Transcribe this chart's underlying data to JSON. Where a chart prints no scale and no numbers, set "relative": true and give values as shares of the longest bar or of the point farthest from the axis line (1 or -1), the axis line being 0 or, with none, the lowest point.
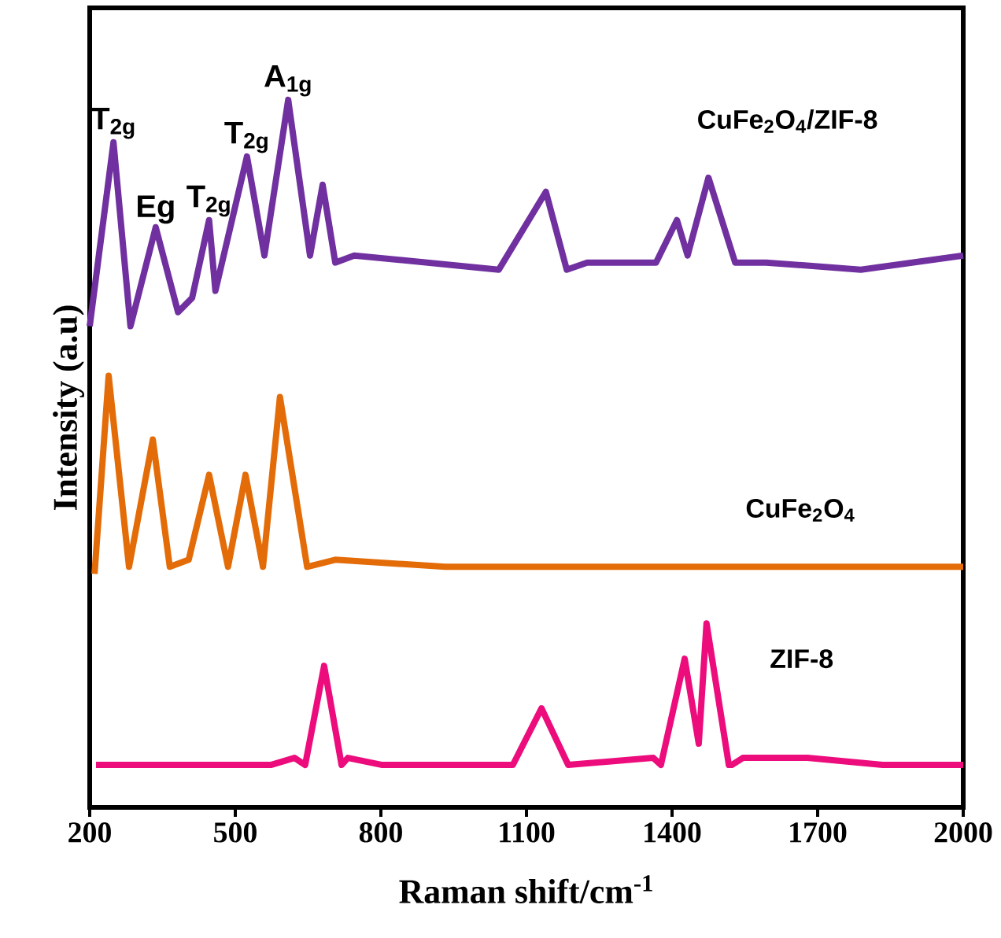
{
  "chart_data": {
    "type": "line",
    "relative": true,
    "xlabel": "Raman shift/cm$^{-1}$",
    "ylabel": "Intensity (a.u)",
    "xlim": [
      200,
      2000
    ],
    "xticks": [
      200,
      500,
      800,
      1100,
      1400,
      1700,
      2000
    ],
    "marker": "none",
    "line_style": "solid",
    "annotations": [
      {
        "text": "T$_{2g}$",
        "x": 249,
        "y": 0.94
      },
      {
        "text": "Eg",
        "x": 336,
        "y": 0.82
      },
      {
        "text": "T$_{2g}$",
        "x": 446,
        "y": 0.83
      },
      {
        "text": "T$_{2g}$",
        "x": 524,
        "y": 0.92
      },
      {
        "text": "A$_{1g}$",
        "x": 609,
        "y": 1.0
      }
    ],
    "series": [
      {
        "name": "CuFe$_{2}$O$_{4}$/ZIF-8",
        "color": "#7030a0",
        "x": [
          200,
          249,
          284,
          336,
          382,
          411,
          446,
          459,
          524,
          560,
          609,
          654,
          680,
          706,
          745,
          1043,
          1140,
          1183,
          1225,
          1367,
          1410,
          1432,
          1475,
          1530,
          1594,
          1789,
          2000
        ],
        "values": [
          0.68,
          0.94,
          0.68,
          0.82,
          0.7,
          0.72,
          0.83,
          0.73,
          0.92,
          0.78,
          1.0,
          0.78,
          0.88,
          0.77,
          0.78,
          0.76,
          0.87,
          0.76,
          0.77,
          0.77,
          0.83,
          0.78,
          0.89,
          0.77,
          0.77,
          0.76,
          0.78
        ]
      },
      {
        "name": "CuFe$_{2}$O$_{4}$",
        "color": "#e36c09",
        "x": [
          210,
          239,
          281,
          330,
          365,
          404,
          446,
          485,
          521,
          557,
          592,
          648,
          706,
          933,
          2000
        ],
        "values": [
          0.33,
          0.61,
          0.34,
          0.52,
          0.34,
          0.35,
          0.47,
          0.34,
          0.47,
          0.34,
          0.58,
          0.34,
          0.35,
          0.34,
          0.34
        ]
      },
      {
        "name": "ZIF-8",
        "color": "#ec0c7c",
        "x": [
          213,
          573,
          622,
          644,
          683,
          719,
          732,
          803,
          1072,
          1131,
          1186,
          1361,
          1377,
          1426,
          1455,
          1471,
          1517,
          1523,
          1546,
          1679,
          1834,
          2000
        ],
        "values": [
          0.06,
          0.06,
          0.07,
          0.06,
          0.2,
          0.06,
          0.07,
          0.06,
          0.06,
          0.14,
          0.06,
          0.07,
          0.06,
          0.21,
          0.09,
          0.26,
          0.06,
          0.06,
          0.07,
          0.07,
          0.06,
          0.06
        ]
      }
    ]
  }
}
